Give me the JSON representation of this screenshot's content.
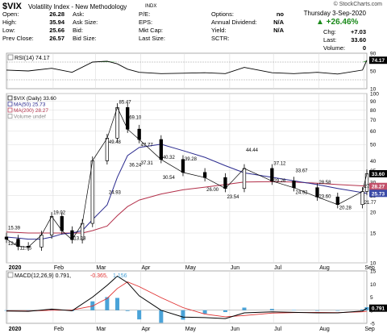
{
  "header": {
    "symbol": "$VIX",
    "name": "Volatility Index - New Methodology",
    "exchange": "INDX",
    "copyright": "© StockCharts.com"
  },
  "quote": {
    "rows": [
      [
        {
          "label": "Open:",
          "value": "26.28"
        },
        {
          "label": "Ask:",
          "value": ""
        },
        {
          "label": "P/E:",
          "value": ""
        },
        {
          "label": "Options:",
          "value": "no"
        }
      ],
      [
        {
          "label": "High:",
          "value": "35.94"
        },
        {
          "label": "Ask Size:",
          "value": ""
        },
        {
          "label": "EPS:",
          "value": ""
        },
        {
          "label": "Annual Dividend:",
          "value": "N/A"
        }
      ],
      [
        {
          "label": "Low:",
          "value": "25.66"
        },
        {
          "label": "Bid:",
          "value": ""
        },
        {
          "label": "Mkt Cap:",
          "value": ""
        },
        {
          "label": "Yield:",
          "value": "N/A"
        }
      ],
      [
        {
          "label": "Prev Close:",
          "value": "26.57"
        },
        {
          "label": "Bid Size:",
          "value": ""
        },
        {
          "label": "Last Size:",
          "value": ""
        },
        {
          "label": "SCTR:",
          "value": ""
        }
      ]
    ]
  },
  "summary": {
    "date": "Thursday  3-Sep-2020",
    "change_pct": "▲ +26.46%",
    "chg_label": "Chg:",
    "chg_value": "+7.03",
    "last_label": "Last:",
    "last_value": "33.60",
    "volume_label": "Volume:",
    "volume_value": "0"
  },
  "colors": {
    "price": "#000000",
    "ma50": "#2b2b8f",
    "ma200": "#b3304a",
    "rsi": "#000000",
    "rsi_fill": "#3a9a3a",
    "macd": "#000000",
    "signal": "#e03030",
    "histogram": "#4aa3d8",
    "grid": "#dcdcdc",
    "last_tag": "#000000",
    "ma50_tag": "#3a4aa8",
    "ma200_tag": "#c2506a"
  },
  "chart_data": [
    {
      "type": "line",
      "panel": "rsi",
      "legend": "RSI(14) 74.17",
      "x": [
        "Dec 31",
        "Jan 15",
        "Jan 31",
        "Feb 14",
        "Feb 28",
        "Mar 09",
        "Mar 16",
        "Mar 23",
        "Mar 31",
        "Apr 15",
        "Apr 30",
        "May 15",
        "May 29",
        "Jun 11",
        "Jun 30",
        "Jul 15",
        "Jul 31",
        "Aug 14",
        "Aug 31",
        "Sep 03"
      ],
      "values": [
        52,
        50,
        56,
        47,
        70,
        72,
        66,
        54,
        47,
        44,
        45,
        46,
        44,
        58,
        46,
        44,
        47,
        43,
        52,
        74.17
      ],
      "ylim": [
        10,
        90
      ],
      "ticks": [
        10,
        50,
        90
      ],
      "last_tag": "74.17"
    },
    {
      "type": "candlestick",
      "panel": "price",
      "title": "$VIX (Daily) 33.60",
      "legend": [
        "$VIX (Daily) 33.60",
        "MA(50) 25.73",
        "MA(200) 28.27",
        "Volume undef"
      ],
      "scale": "log",
      "ylim": [
        10,
        100
      ],
      "ticks": [
        10,
        15,
        20,
        25,
        30,
        35,
        40,
        50,
        60,
        70,
        80,
        90,
        100
      ],
      "xticks": [
        "2020",
        "Feb",
        "Mar",
        "Apr",
        "May",
        "Jun",
        "Jul",
        "Aug",
        "Sep"
      ],
      "x": [
        "Dec 31",
        "Jan 08",
        "Jan 15",
        "Jan 24",
        "Jan 31",
        "Feb 07",
        "Feb 14",
        "Feb 21",
        "Feb 28",
        "Mar 09",
        "Mar 16",
        "Mar 23",
        "Mar 31",
        "Apr 15",
        "Apr 30",
        "May 15",
        "May 29",
        "Jun 11",
        "Jun 30",
        "Jul 15",
        "Jul 31",
        "Aug 14",
        "Aug 31",
        "Sep 03"
      ],
      "close": [
        13.8,
        12.5,
        12.4,
        14.6,
        18.8,
        15.5,
        13.7,
        17.1,
        40.1,
        54.5,
        82.7,
        61.6,
        53.5,
        40.8,
        34.2,
        31.9,
        27.5,
        36.1,
        30.4,
        27.8,
        24.5,
        22.1,
        26.4,
        33.6
      ],
      "ma50": [
        14.2,
        14.0,
        13.8,
        13.8,
        14.2,
        14.8,
        15.0,
        15.5,
        18.0,
        22.0,
        32.0,
        43.0,
        48.0,
        50.2,
        46.0,
        42.0,
        37.5,
        34.0,
        32.0,
        30.5,
        29.0,
        27.5,
        26.0,
        25.73
      ],
      "ma200": [
        15.2,
        15.1,
        15.0,
        15.0,
        15.0,
        15.0,
        15.0,
        15.0,
        15.5,
        16.5,
        19.0,
        21.5,
        23.5,
        25.5,
        27.0,
        28.0,
        29.0,
        30.0,
        30.2,
        30.0,
        29.5,
        29.0,
        28.5,
        28.27
      ],
      "annotations": [
        {
          "text": "15.39",
          "x": "Dec 31",
          "y": 15.39
        },
        {
          "text": "12.42",
          "x": "Dec 31",
          "y": 12.42
        },
        {
          "text": "11.75",
          "x": "Jan 08",
          "y": 11.75
        },
        {
          "text": "19.02",
          "x": "Jan 31",
          "y": 19.02
        },
        {
          "text": "13.38",
          "x": "Feb 14",
          "y": 13.38
        },
        {
          "text": "49.48",
          "x": "Mar 09",
          "y": 49.48
        },
        {
          "text": "24.93",
          "x": "Mar 09",
          "y": 24.93
        },
        {
          "text": "85.47",
          "x": "Mar 16",
          "y": 85.47
        },
        {
          "text": "69.10",
          "x": "Mar 23",
          "y": 69.1
        },
        {
          "text": "36.24",
          "x": "Mar 23",
          "y": 36.24
        },
        {
          "text": "47.77",
          "x": "Mar 31",
          "y": 47.77
        },
        {
          "text": "37.31",
          "x": "Mar 31",
          "y": 37.31
        },
        {
          "text": "40.32",
          "x": "Apr 15",
          "y": 40.32
        },
        {
          "text": "30.54",
          "x": "Apr 15",
          "y": 30.54
        },
        {
          "text": "39.28",
          "x": "Apr 30",
          "y": 39.28
        },
        {
          "text": "26.00",
          "x": "May 15",
          "y": 26.0
        },
        {
          "text": "23.54",
          "x": "May 29",
          "y": 23.54
        },
        {
          "text": "44.44",
          "x": "Jun 11",
          "y": 44.44
        },
        {
          "text": "29.26",
          "x": "Jun 30",
          "y": 29.26
        },
        {
          "text": "37.12",
          "x": "Jun 30",
          "y": 37.12
        },
        {
          "text": "24.92",
          "x": "Jul 15",
          "y": 24.92
        },
        {
          "text": "33.67",
          "x": "Jul 15",
          "y": 33.67
        },
        {
          "text": "28.58",
          "x": "Jul 31",
          "y": 28.58
        },
        {
          "text": "23.60",
          "x": "Jul 31",
          "y": 23.6
        },
        {
          "text": "20.28",
          "x": "Aug 14",
          "y": 20.28
        },
        {
          "text": "27.09",
          "x": "Aug 31",
          "y": 27.09
        },
        {
          "text": "21.77",
          "x": "Aug 31",
          "y": 21.77
        }
      ],
      "right_tags": [
        {
          "text": "33.60",
          "value": 33.6
        },
        {
          "text": "28.27",
          "value": 28.27
        },
        {
          "text": "25.73",
          "value": 25.73
        }
      ]
    },
    {
      "type": "line",
      "panel": "macd",
      "legend": [
        "MACD(12,26,9) 0.791,",
        "-0.365,",
        "1.156"
      ],
      "ylim": [
        -5,
        15
      ],
      "ticks": [
        -5,
        0,
        5,
        10,
        15
      ],
      "xticks": [
        "2020",
        "Feb",
        "Mar",
        "Apr",
        "May",
        "Jun",
        "Jul",
        "Aug",
        "Sep"
      ],
      "x": [
        "Dec 31",
        "Jan 15",
        "Jan 31",
        "Feb 14",
        "Feb 28",
        "Mar 09",
        "Mar 16",
        "Mar 23",
        "Mar 31",
        "Apr 15",
        "Apr 30",
        "May 15",
        "May 29",
        "Jun 11",
        "Jun 30",
        "Jul 15",
        "Jul 31",
        "Aug 14",
        "Aug 31",
        "Sep 03"
      ],
      "macd": [
        -0.3,
        -0.4,
        0.4,
        -0.2,
        5.0,
        9.5,
        13.0,
        10.5,
        5.5,
        0.0,
        -2.6,
        -2.8,
        -3.2,
        -1.0,
        -0.6,
        -0.8,
        -1.0,
        -1.0,
        -0.3,
        0.791
      ],
      "signal": [
        -0.2,
        -0.3,
        0.0,
        0.1,
        1.6,
        4.5,
        8.3,
        10.8,
        9.0,
        4.8,
        1.0,
        -1.5,
        -2.5,
        -2.0,
        -1.1,
        -0.9,
        -0.8,
        -0.9,
        -0.6,
        -0.365
      ],
      "histogram": [
        -0.1,
        -0.1,
        0.4,
        -0.3,
        3.4,
        5.0,
        4.7,
        -0.3,
        -3.5,
        -4.8,
        -3.6,
        -1.3,
        -0.7,
        1.0,
        0.5,
        0.1,
        -0.2,
        -0.1,
        0.3,
        1.156
      ],
      "last_tag": "0.791"
    }
  ]
}
